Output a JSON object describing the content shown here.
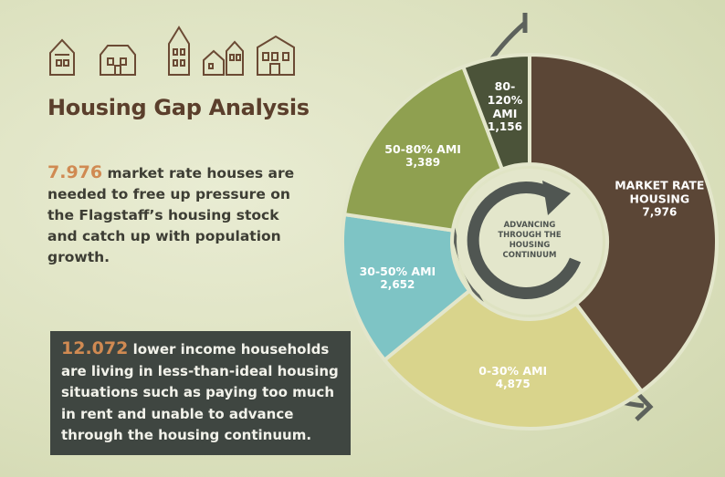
{
  "chart_data": {
    "type": "donut",
    "title": "Housing Gap Analysis",
    "categories": [
      "MARKET RATE HOUSING",
      "0-30% AMI",
      "30-50% AMI",
      "50-80% AMI",
      "80-120% AMI"
    ],
    "values": [
      7976,
      4875,
      2652,
      3389,
      1156
    ],
    "value_labels": [
      "7,976",
      "4,875",
      "2,652",
      "3,389",
      "1,156"
    ],
    "colors": [
      "#5b4636",
      "#d9d48c",
      "#7ec4c5",
      "#8fa050",
      "#4b5339"
    ],
    "center_text": "ADVANCING THROUGH THE HOUSING CONTINUUM"
  },
  "intro": {
    "highlight": "7.976",
    "text": "market rate houses are needed to free up pressure on the Flagstaff’s housing stock and catch up with population growth."
  },
  "callout": {
    "highlight": "12.072",
    "text": "lower income households are living in less-than-ideal housing situations such as paying too much in rent and unable to advance through the housing continuum."
  }
}
